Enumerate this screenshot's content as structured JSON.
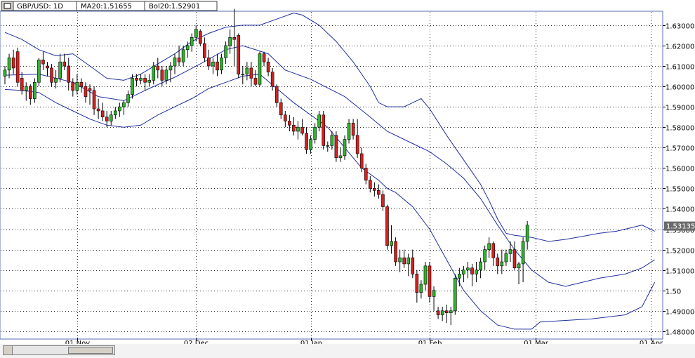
{
  "header": {
    "symbol": "GBP/USD: 1D",
    "ma": "MA20:1.51655",
    "bol": "Bol20:1.52901"
  },
  "colors": {
    "up": "#2db52d",
    "down": "#d62020",
    "band": "#1f2fa0",
    "grid": "#2a2a2a",
    "price_tag_bg": "#6b6b6b"
  },
  "chart_data": {
    "type": "candlestick",
    "title": "",
    "xlabel": "",
    "ylabel": "",
    "ylim": [
      1.4765,
      1.6365
    ],
    "y_ticks": [
      "1.63000",
      "1.62000",
      "1.61000",
      "1.60000",
      "1.59000",
      "1.58000",
      "1.57000",
      "1.56000",
      "1.55000",
      "1.54000",
      "1.53000",
      "1.52000",
      "1.51000",
      "1.50",
      "1.49000",
      "1.48000"
    ],
    "y_tick_values": [
      1.63,
      1.62,
      1.61,
      1.6,
      1.59,
      1.58,
      1.57,
      1.56,
      1.55,
      1.54,
      1.53,
      1.52,
      1.51,
      1.5,
      1.49,
      1.48
    ],
    "x_ticks": [
      {
        "label": "01 Nov",
        "index": 17
      },
      {
        "label": "02 Dec",
        "index": 45
      },
      {
        "label": "01 Jan",
        "index": 72
      },
      {
        "label": "01 Feb",
        "index": 100
      },
      {
        "label": "01 Mar",
        "index": 125
      },
      {
        "label": "01 Apr",
        "index": 152
      }
    ],
    "last_price_label": "1.53135",
    "last_price": 1.53135,
    "candles": [
      [
        1.605,
        1.61,
        1.601,
        1.608
      ],
      [
        1.608,
        1.616,
        1.604,
        1.614
      ],
      [
        1.614,
        1.618,
        1.606,
        1.609
      ],
      [
        1.617,
        1.619,
        1.6,
        1.602
      ],
      [
        1.604,
        1.607,
        1.596,
        1.598
      ],
      [
        1.598,
        1.602,
        1.593,
        1.6
      ],
      [
        1.6,
        1.601,
        1.591,
        1.594
      ],
      [
        1.594,
        1.604,
        1.592,
        1.602
      ],
      [
        1.602,
        1.614,
        1.6,
        1.613
      ],
      [
        1.613,
        1.617,
        1.608,
        1.611
      ],
      [
        1.61,
        1.612,
        1.605,
        1.609
      ],
      [
        1.609,
        1.611,
        1.6,
        1.602
      ],
      [
        1.602,
        1.608,
        1.599,
        1.604
      ],
      [
        1.604,
        1.616,
        1.602,
        1.612
      ],
      [
        1.612,
        1.616,
        1.608,
        1.61
      ],
      [
        1.61,
        1.614,
        1.598,
        1.602
      ],
      [
        1.602,
        1.604,
        1.595,
        1.598
      ],
      [
        1.598,
        1.606,
        1.596,
        1.602
      ],
      [
        1.602,
        1.604,
        1.597,
        1.6
      ],
      [
        1.6,
        1.602,
        1.592,
        1.595
      ],
      [
        1.599,
        1.601,
        1.591,
        1.598
      ],
      [
        1.598,
        1.6,
        1.586,
        1.589
      ],
      [
        1.589,
        1.594,
        1.584,
        1.588
      ],
      [
        1.588,
        1.592,
        1.583,
        1.585
      ],
      [
        1.585,
        1.588,
        1.58,
        1.583
      ],
      [
        1.583,
        1.588,
        1.581,
        1.586
      ],
      [
        1.586,
        1.59,
        1.584,
        1.588
      ],
      [
        1.588,
        1.592,
        1.585,
        1.59
      ],
      [
        1.59,
        1.593,
        1.586,
        1.592
      ],
      [
        1.592,
        1.598,
        1.59,
        1.596
      ],
      [
        1.596,
        1.606,
        1.594,
        1.604
      ],
      [
        1.604,
        1.606,
        1.6,
        1.603
      ],
      [
        1.603,
        1.606,
        1.601,
        1.604
      ],
      [
        1.604,
        1.606,
        1.598,
        1.602
      ],
      [
        1.602,
        1.606,
        1.6,
        1.603
      ],
      [
        1.603,
        1.612,
        1.601,
        1.61
      ],
      [
        1.61,
        1.614,
        1.604,
        1.608
      ],
      [
        1.608,
        1.61,
        1.6,
        1.603
      ],
      [
        1.603,
        1.61,
        1.601,
        1.608
      ],
      [
        1.608,
        1.612,
        1.602,
        1.61
      ],
      [
        1.61,
        1.616,
        1.606,
        1.614
      ],
      [
        1.614,
        1.62,
        1.61,
        1.612
      ],
      [
        1.612,
        1.62,
        1.61,
        1.618
      ],
      [
        1.618,
        1.622,
        1.614,
        1.62
      ],
      [
        1.62,
        1.626,
        1.617,
        1.624
      ],
      [
        1.624,
        1.63,
        1.622,
        1.628
      ],
      [
        1.627,
        1.628,
        1.62,
        1.621
      ],
      [
        1.621,
        1.624,
        1.612,
        1.614
      ],
      [
        1.614,
        1.618,
        1.608,
        1.61
      ],
      [
        1.61,
        1.614,
        1.606,
        1.612
      ],
      [
        1.612,
        1.616,
        1.605,
        1.608
      ],
      [
        1.608,
        1.616,
        1.606,
        1.614
      ],
      [
        1.614,
        1.622,
        1.611,
        1.62
      ],
      [
        1.62,
        1.628,
        1.616,
        1.624
      ],
      [
        1.624,
        1.638,
        1.61,
        1.623
      ],
      [
        1.625,
        1.626,
        1.604,
        1.606
      ],
      [
        1.606,
        1.61,
        1.601,
        1.606
      ],
      [
        1.606,
        1.612,
        1.603,
        1.609
      ],
      [
        1.609,
        1.612,
        1.6,
        1.604
      ],
      [
        1.604,
        1.608,
        1.6,
        1.601
      ],
      [
        1.601,
        1.617,
        1.6,
        1.616
      ],
      [
        1.616,
        1.617,
        1.61,
        1.612
      ],
      [
        1.612,
        1.614,
        1.605,
        1.607
      ],
      [
        1.607,
        1.609,
        1.598,
        1.6
      ],
      [
        1.6,
        1.601,
        1.59,
        1.592
      ],
      [
        1.592,
        1.594,
        1.584,
        1.586
      ],
      [
        1.586,
        1.588,
        1.58,
        1.583
      ],
      [
        1.583,
        1.586,
        1.578,
        1.581
      ],
      [
        1.581,
        1.585,
        1.576,
        1.578
      ],
      [
        1.578,
        1.583,
        1.574,
        1.58
      ],
      [
        1.58,
        1.584,
        1.576,
        1.577
      ],
      [
        1.577,
        1.58,
        1.567,
        1.569
      ],
      [
        1.569,
        1.576,
        1.567,
        1.574
      ],
      [
        1.574,
        1.582,
        1.572,
        1.58
      ],
      [
        1.58,
        1.588,
        1.578,
        1.586
      ],
      [
        1.586,
        1.588,
        1.569,
        1.571
      ],
      [
        1.571,
        1.573,
        1.568,
        1.571
      ],
      [
        1.571,
        1.578,
        1.569,
        1.576
      ],
      [
        1.576,
        1.578,
        1.563,
        1.565
      ],
      [
        1.565,
        1.57,
        1.563,
        1.566
      ],
      [
        1.566,
        1.576,
        1.564,
        1.574
      ],
      [
        1.574,
        1.584,
        1.572,
        1.582
      ],
      [
        1.582,
        1.584,
        1.574,
        1.576
      ],
      [
        1.576,
        1.584,
        1.565,
        1.567
      ],
      [
        1.567,
        1.57,
        1.558,
        1.56
      ],
      [
        1.56,
        1.562,
        1.552,
        1.554
      ],
      [
        1.554,
        1.556,
        1.548,
        1.55
      ],
      [
        1.55,
        1.553,
        1.546,
        1.549
      ],
      [
        1.549,
        1.552,
        1.545,
        1.547
      ],
      [
        1.547,
        1.549,
        1.539,
        1.541
      ],
      [
        1.541,
        1.542,
        1.52,
        1.522
      ],
      [
        1.522,
        1.532,
        1.518,
        1.524
      ],
      [
        1.524,
        1.526,
        1.512,
        1.514
      ],
      [
        1.514,
        1.52,
        1.509,
        1.516
      ],
      [
        1.516,
        1.52,
        1.511,
        1.513
      ],
      [
        1.513,
        1.518,
        1.507,
        1.516
      ],
      [
        1.516,
        1.52,
        1.506,
        1.508
      ],
      [
        1.508,
        1.51,
        1.494,
        1.499
      ],
      [
        1.499,
        1.505,
        1.496,
        1.503
      ],
      [
        1.503,
        1.514,
        1.5,
        1.512
      ],
      [
        1.512,
        1.514,
        1.494,
        1.497
      ],
      [
        1.497,
        1.502,
        1.49,
        1.5
      ],
      [
        1.49,
        1.492,
        1.486,
        1.488
      ],
      [
        1.488,
        1.492,
        1.485,
        1.49
      ],
      [
        1.49,
        1.493,
        1.484,
        1.489
      ],
      [
        1.489,
        1.492,
        1.483,
        1.49
      ],
      [
        1.49,
        1.508,
        1.488,
        1.506
      ],
      [
        1.506,
        1.511,
        1.502,
        1.508
      ],
      [
        1.508,
        1.512,
        1.504,
        1.51
      ],
      [
        1.51,
        1.514,
        1.506,
        1.511
      ],
      [
        1.511,
        1.513,
        1.502,
        1.508
      ],
      [
        1.508,
        1.514,
        1.504,
        1.51
      ],
      [
        1.51,
        1.516,
        1.506,
        1.514
      ],
      [
        1.514,
        1.522,
        1.51,
        1.52
      ],
      [
        1.52,
        1.526,
        1.516,
        1.523
      ],
      [
        1.523,
        1.524,
        1.512,
        1.516
      ],
      [
        1.516,
        1.518,
        1.508,
        1.512
      ],
      [
        1.512,
        1.52,
        1.508,
        1.514
      ],
      [
        1.514,
        1.52,
        1.512,
        1.518
      ],
      [
        1.518,
        1.524,
        1.514,
        1.52
      ],
      [
        1.52,
        1.524,
        1.51,
        1.511
      ],
      [
        1.511,
        1.514,
        1.503,
        1.513
      ],
      [
        1.513,
        1.526,
        1.504,
        1.524
      ],
      [
        1.524,
        1.534,
        1.52,
        1.532
      ]
    ],
    "ma20": [
      [
        0,
        1.6055
      ],
      [
        8,
        1.606
      ],
      [
        16,
        1.602
      ],
      [
        22,
        1.595
      ],
      [
        28,
        1.593
      ],
      [
        34,
        1.599
      ],
      [
        40,
        1.6045
      ],
      [
        46,
        1.611
      ],
      [
        52,
        1.618
      ],
      [
        56,
        1.62
      ],
      [
        62,
        1.616
      ],
      [
        66,
        1.608
      ],
      [
        72,
        1.6035
      ],
      [
        80,
        1.595
      ],
      [
        86,
        1.585
      ],
      [
        90,
        1.578
      ],
      [
        96,
        1.572
      ],
      [
        100,
        1.568
      ],
      [
        104,
        1.562
      ],
      [
        108,
        1.555
      ],
      [
        112,
        1.545
      ],
      [
        116,
        1.532
      ],
      [
        120,
        1.52
      ],
      [
        124,
        1.51
      ],
      [
        128,
        1.504
      ],
      [
        132,
        1.502
      ],
      [
        136,
        1.504
      ],
      [
        140,
        1.506
      ],
      [
        146,
        1.508
      ],
      [
        150,
        1.511
      ],
      [
        153,
        1.515
      ]
    ],
    "bol_upper": [
      [
        0,
        1.6265
      ],
      [
        4,
        1.623
      ],
      [
        8,
        1.618
      ],
      [
        12,
        1.615
      ],
      [
        16,
        1.616
      ],
      [
        20,
        1.61
      ],
      [
        24,
        1.604
      ],
      [
        28,
        1.603
      ],
      [
        32,
        1.606
      ],
      [
        36,
        1.611
      ],
      [
        40,
        1.616
      ],
      [
        44,
        1.622
      ],
      [
        48,
        1.626
      ],
      [
        52,
        1.629
      ],
      [
        56,
        1.63
      ],
      [
        60,
        1.63
      ],
      [
        64,
        1.633
      ],
      [
        68,
        1.636
      ],
      [
        70,
        1.635
      ],
      [
        74,
        1.63
      ],
      [
        78,
        1.622
      ],
      [
        82,
        1.612
      ],
      [
        86,
        1.6
      ],
      [
        88,
        1.592
      ],
      [
        90,
        1.59
      ],
      [
        94,
        1.59
      ],
      [
        96,
        1.592
      ],
      [
        98,
        1.594
      ],
      [
        100,
        1.589
      ],
      [
        104,
        1.576
      ],
      [
        108,
        1.564
      ],
      [
        112,
        1.552
      ],
      [
        114,
        1.544
      ],
      [
        116,
        1.535
      ],
      [
        118,
        1.528
      ],
      [
        120,
        1.527
      ],
      [
        124,
        1.526
      ],
      [
        128,
        1.524
      ],
      [
        132,
        1.525
      ],
      [
        136,
        1.5265
      ],
      [
        140,
        1.528
      ],
      [
        144,
        1.529
      ],
      [
        148,
        1.531
      ],
      [
        150,
        1.532
      ],
      [
        153,
        1.529
      ]
    ],
    "bol_lower": [
      [
        0,
        1.5985
      ],
      [
        4,
        1.598
      ],
      [
        8,
        1.597
      ],
      [
        12,
        1.592
      ],
      [
        16,
        1.588
      ],
      [
        20,
        1.584
      ],
      [
        24,
        1.581
      ],
      [
        28,
        1.58
      ],
      [
        32,
        1.581
      ],
      [
        36,
        1.586
      ],
      [
        40,
        1.59
      ],
      [
        44,
        1.594
      ],
      [
        48,
        1.599
      ],
      [
        52,
        1.602
      ],
      [
        56,
        1.605
      ],
      [
        60,
        1.606
      ],
      [
        64,
        1.599
      ],
      [
        68,
        1.592
      ],
      [
        72,
        1.586
      ],
      [
        76,
        1.58
      ],
      [
        80,
        1.57
      ],
      [
        84,
        1.56
      ],
      [
        88,
        1.554
      ],
      [
        90,
        1.55
      ],
      [
        92,
        1.548
      ],
      [
        96,
        1.541
      ],
      [
        100,
        1.53
      ],
      [
        104,
        1.515
      ],
      [
        108,
        1.5
      ],
      [
        112,
        1.49
      ],
      [
        116,
        1.483
      ],
      [
        120,
        1.481
      ],
      [
        124,
        1.481
      ],
      [
        126,
        1.4845
      ],
      [
        130,
        1.485
      ],
      [
        134,
        1.4855
      ],
      [
        138,
        1.486
      ],
      [
        142,
        1.487
      ],
      [
        146,
        1.488
      ],
      [
        150,
        1.492
      ],
      [
        153,
        1.504
      ]
    ]
  }
}
